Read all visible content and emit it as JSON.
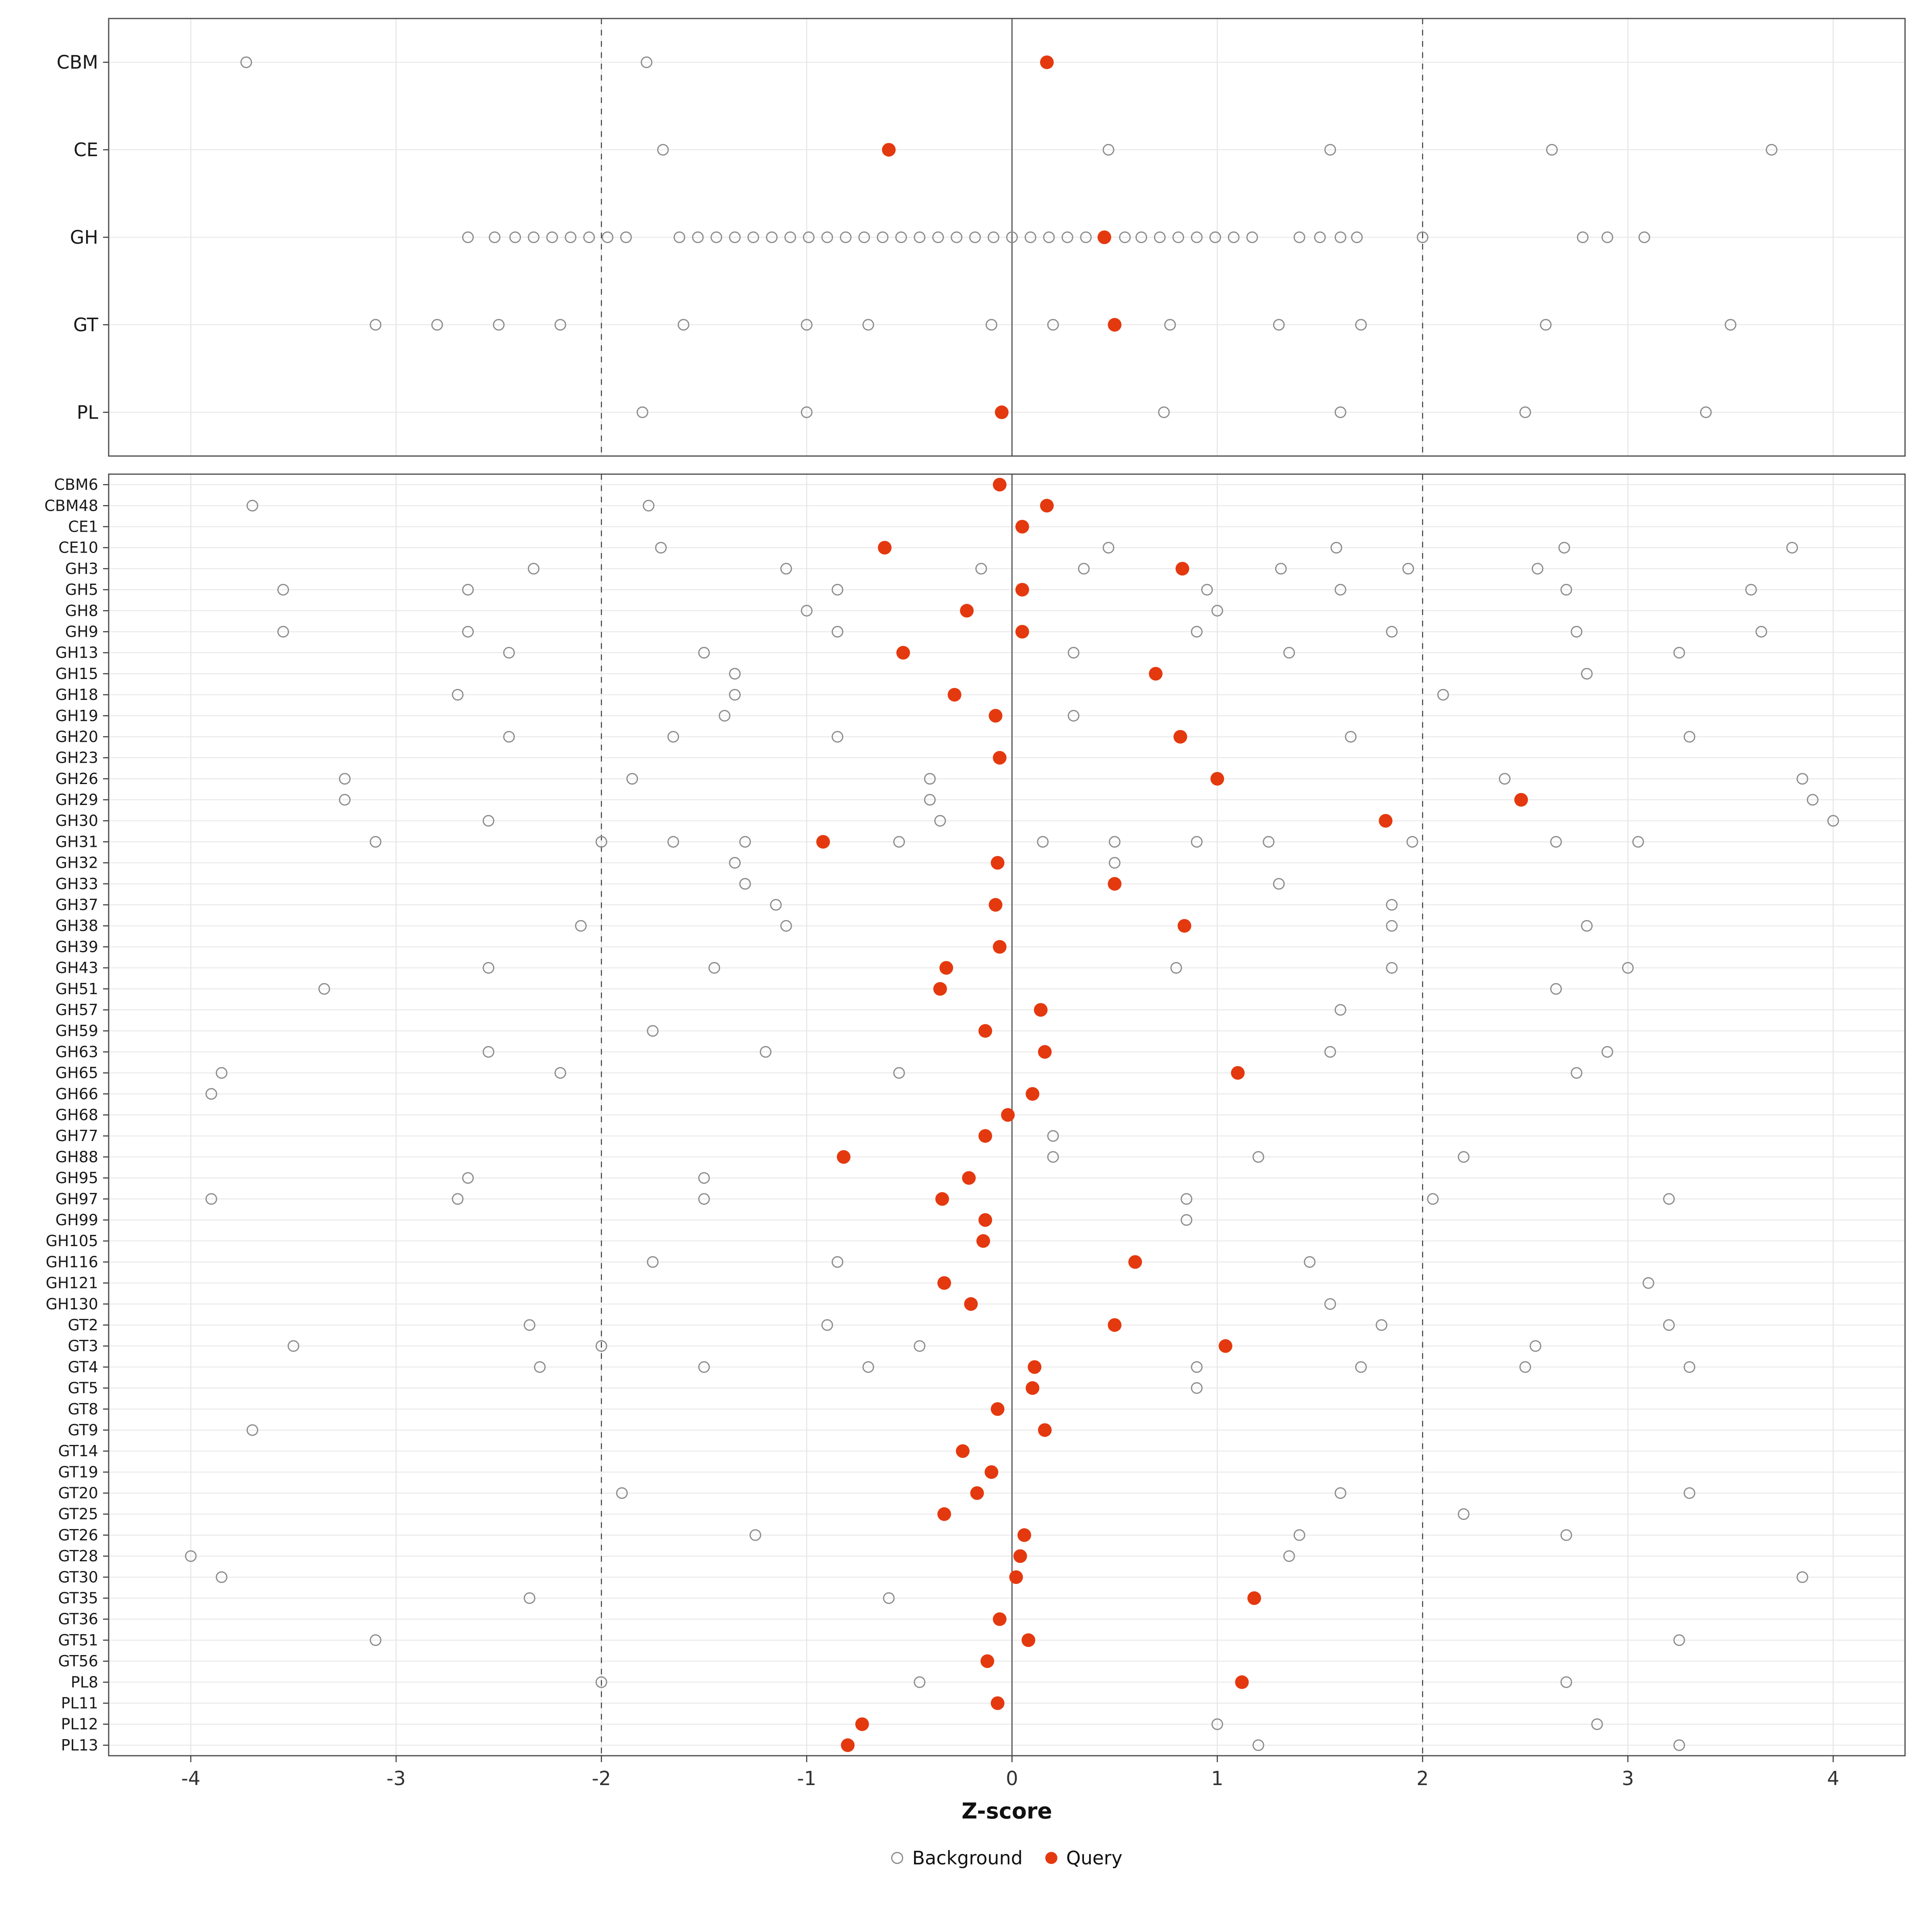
{
  "figure": {
    "xlabel": "Z-score",
    "legend": [
      {
        "label": "Background",
        "type": "background"
      },
      {
        "label": "Query",
        "type": "query"
      }
    ],
    "colors": {
      "background_stroke": "#8c8c8c",
      "query_fill": "#E4390F",
      "grid": "#e5e5e5",
      "border": "#4d4d4d",
      "refline": "#3c3c3c",
      "axis_text": "#333333",
      "label_text": "#1a1a1a"
    },
    "x_axis": {
      "ticks": [
        -4,
        -3,
        -2,
        -1,
        0,
        1,
        2,
        3,
        4
      ],
      "domain": [
        -4.4,
        4.35
      ],
      "reference_solid": 0,
      "reference_dashed": [
        -2,
        2
      ]
    }
  },
  "chart_data": [
    {
      "type": "scatter",
      "panel": "class-summary",
      "rows": [
        {
          "label": "CBM",
          "query": 0.17,
          "background": [
            -3.73,
            -1.78
          ]
        },
        {
          "label": "CE",
          "query": -0.6,
          "background": [
            -1.7,
            0.47,
            1.55,
            2.63,
            3.7
          ]
        },
        {
          "label": "GH",
          "query": 0.45,
          "background": [
            -2.65,
            -2.52,
            -2.42,
            -2.33,
            -2.24,
            -2.15,
            -2.06,
            -1.97,
            -1.88,
            -1.62,
            -1.53,
            -1.44,
            -1.35,
            -1.26,
            -1.17,
            -1.08,
            -0.99,
            -0.9,
            -0.81,
            -0.72,
            -0.63,
            -0.54,
            -0.45,
            -0.36,
            -0.27,
            -0.18,
            -0.09,
            0.0,
            0.09,
            0.18,
            0.27,
            0.36,
            0.55,
            0.63,
            0.72,
            0.81,
            0.9,
            0.99,
            1.08,
            1.17,
            1.4,
            1.5,
            1.6,
            1.68,
            2.0,
            2.78,
            2.9,
            3.08
          ]
        },
        {
          "label": "GT",
          "query": 0.5,
          "background": [
            -3.1,
            -2.8,
            -2.5,
            -2.2,
            -1.6,
            -1.0,
            -0.7,
            -0.1,
            0.2,
            0.77,
            1.3,
            1.7,
            2.6,
            3.5
          ]
        },
        {
          "label": "PL",
          "query": -0.05,
          "background": [
            -1.8,
            -1.0,
            0.74,
            1.6,
            2.5,
            3.38
          ]
        }
      ]
    },
    {
      "type": "scatter",
      "panel": "family-detail",
      "rows": [
        {
          "label": "CBM6",
          "query": -0.06,
          "background": []
        },
        {
          "label": "CBM48",
          "query": 0.17,
          "background": [
            -3.7,
            -1.77
          ]
        },
        {
          "label": "CE1",
          "query": 0.05,
          "background": []
        },
        {
          "label": "CE10",
          "query": -0.62,
          "background": [
            -1.71,
            0.47,
            1.58,
            2.69,
            3.8
          ]
        },
        {
          "label": "GH3",
          "query": 0.83,
          "background": [
            -2.33,
            -1.1,
            -0.15,
            0.35,
            1.31,
            1.93,
            2.56
          ]
        },
        {
          "label": "GH5",
          "query": 0.05,
          "background": [
            -3.55,
            -2.65,
            -0.85,
            0.95,
            1.6,
            2.7,
            3.6
          ]
        },
        {
          "label": "GH8",
          "query": -0.22,
          "background": [
            -1.0,
            1.0
          ]
        },
        {
          "label": "GH9",
          "query": 0.05,
          "background": [
            -3.55,
            -2.65,
            -0.85,
            0.9,
            1.85,
            2.75,
            3.65
          ]
        },
        {
          "label": "GH13",
          "query": -0.53,
          "background": [
            -2.45,
            -1.5,
            0.3,
            1.35,
            3.25
          ]
        },
        {
          "label": "GH15",
          "query": 0.7,
          "background": [
            -1.35,
            2.8
          ]
        },
        {
          "label": "GH18",
          "query": -0.28,
          "background": [
            -2.7,
            -1.35,
            2.1
          ]
        },
        {
          "label": "GH19",
          "query": -0.08,
          "background": [
            -1.4,
            0.3
          ]
        },
        {
          "label": "GH20",
          "query": 0.82,
          "background": [
            -2.45,
            -1.65,
            -0.85,
            1.65,
            3.3
          ]
        },
        {
          "label": "GH23",
          "query": -0.06,
          "background": []
        },
        {
          "label": "GH26",
          "query": 1.0,
          "background": [
            -3.25,
            -1.85,
            -0.4,
            2.4,
            3.85
          ]
        },
        {
          "label": "GH29",
          "query": 2.48,
          "background": [
            -3.25,
            -0.4,
            3.9
          ]
        },
        {
          "label": "GH30",
          "query": 1.82,
          "background": [
            -2.55,
            -0.35,
            4.0
          ]
        },
        {
          "label": "GH31",
          "query": -0.92,
          "background": [
            -3.1,
            -2.0,
            -1.65,
            -1.3,
            -0.55,
            0.15,
            0.5,
            0.9,
            1.25,
            1.95,
            2.65,
            3.05
          ]
        },
        {
          "label": "GH32",
          "query": -0.07,
          "background": [
            -1.35,
            0.5
          ]
        },
        {
          "label": "GH33",
          "query": 0.5,
          "background": [
            -1.3,
            1.3
          ]
        },
        {
          "label": "GH37",
          "query": -0.08,
          "background": [
            -1.15,
            1.85
          ]
        },
        {
          "label": "GH38",
          "query": 0.84,
          "background": [
            -2.1,
            -1.1,
            1.85,
            2.8
          ]
        },
        {
          "label": "GH39",
          "query": -0.06,
          "background": []
        },
        {
          "label": "GH43",
          "query": -0.32,
          "background": [
            -2.55,
            -1.45,
            0.8,
            1.85,
            3.0
          ]
        },
        {
          "label": "GH51",
          "query": -0.35,
          "background": [
            -3.35,
            2.65
          ]
        },
        {
          "label": "GH57",
          "query": 0.14,
          "background": [
            1.6
          ]
        },
        {
          "label": "GH59",
          "query": -0.13,
          "background": [
            -1.75
          ]
        },
        {
          "label": "GH63",
          "query": 0.16,
          "background": [
            -2.55,
            -1.2,
            1.55,
            2.9
          ]
        },
        {
          "label": "GH65",
          "query": 1.1,
          "background": [
            -3.85,
            -2.2,
            -0.55,
            2.75
          ]
        },
        {
          "label": "GH66",
          "query": 0.1,
          "background": [
            -3.9
          ]
        },
        {
          "label": "GH68",
          "query": -0.02,
          "background": []
        },
        {
          "label": "GH77",
          "query": -0.13,
          "background": [
            0.2
          ]
        },
        {
          "label": "GH88",
          "query": -0.82,
          "background": [
            0.2,
            1.2,
            2.2
          ]
        },
        {
          "label": "GH95",
          "query": -0.21,
          "background": [
            -2.65,
            -1.5
          ]
        },
        {
          "label": "GH97",
          "query": -0.34,
          "background": [
            -3.9,
            -2.7,
            -1.5,
            0.85,
            2.05,
            3.2
          ]
        },
        {
          "label": "GH99",
          "query": -0.13,
          "background": [
            0.85
          ]
        },
        {
          "label": "GH105",
          "query": -0.14,
          "background": []
        },
        {
          "label": "GH116",
          "query": 0.6,
          "background": [
            -1.75,
            -0.85,
            1.45
          ]
        },
        {
          "label": "GH121",
          "query": -0.33,
          "background": [
            3.1
          ]
        },
        {
          "label": "GH130",
          "query": -0.2,
          "background": [
            1.55
          ]
        },
        {
          "label": "GT2",
          "query": 0.5,
          "background": [
            -2.35,
            -0.9,
            1.8,
            3.2
          ]
        },
        {
          "label": "GT3",
          "query": 1.04,
          "background": [
            -3.5,
            -2.0,
            -0.45,
            2.55
          ]
        },
        {
          "label": "GT4",
          "query": 0.11,
          "background": [
            -2.3,
            -1.5,
            -0.7,
            0.9,
            1.7,
            2.5,
            3.3
          ]
        },
        {
          "label": "GT5",
          "query": 0.1,
          "background": [
            0.9
          ]
        },
        {
          "label": "GT8",
          "query": -0.07,
          "background": []
        },
        {
          "label": "GT9",
          "query": 0.16,
          "background": [
            -3.7
          ]
        },
        {
          "label": "GT14",
          "query": -0.24,
          "background": []
        },
        {
          "label": "GT19",
          "query": -0.1,
          "background": []
        },
        {
          "label": "GT20",
          "query": -0.17,
          "background": [
            -1.9,
            1.6,
            3.3
          ]
        },
        {
          "label": "GT25",
          "query": -0.33,
          "background": [
            2.2
          ]
        },
        {
          "label": "GT26",
          "query": 0.06,
          "background": [
            -1.25,
            1.4,
            2.7
          ]
        },
        {
          "label": "GT28",
          "query": 0.04,
          "background": [
            -4.0,
            1.35
          ]
        },
        {
          "label": "GT30",
          "query": 0.02,
          "background": [
            -3.85,
            3.85
          ]
        },
        {
          "label": "GT35",
          "query": 1.18,
          "background": [
            -2.35,
            -0.6
          ]
        },
        {
          "label": "GT36",
          "query": -0.06,
          "background": []
        },
        {
          "label": "GT51",
          "query": 0.08,
          "background": [
            -3.1,
            3.25
          ]
        },
        {
          "label": "GT56",
          "query": -0.12,
          "background": []
        },
        {
          "label": "PL8",
          "query": 1.12,
          "background": [
            -2.0,
            -0.45,
            2.7
          ]
        },
        {
          "label": "PL11",
          "query": -0.07,
          "background": []
        },
        {
          "label": "PL12",
          "query": -0.73,
          "background": [
            1.0,
            2.85
          ]
        },
        {
          "label": "PL13",
          "query": -0.8,
          "background": [
            1.2,
            3.25
          ]
        }
      ]
    }
  ]
}
